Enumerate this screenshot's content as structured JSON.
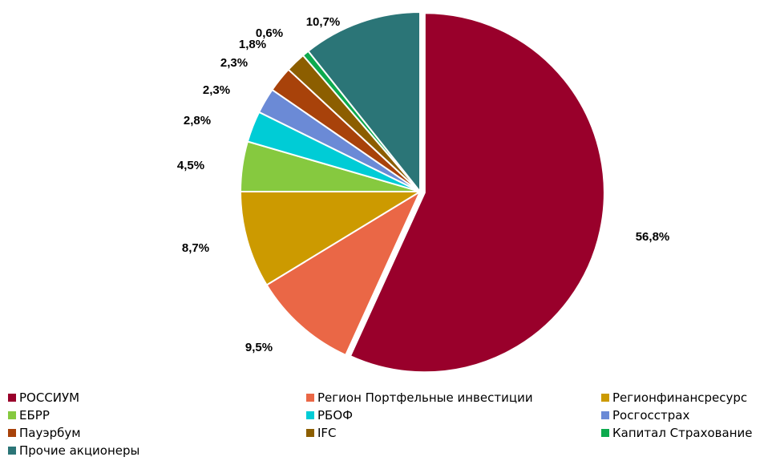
{
  "chart_data": {
    "type": "pie",
    "title": "",
    "legend_position": "bottom",
    "series": [
      {
        "name": "РОССИУМ",
        "value": 56.8,
        "label": "56,8%",
        "color": "#99002B"
      },
      {
        "name": "Регион Портфельные инвестиции",
        "value": 9.5,
        "label": "9,5%",
        "color": "#EA6746"
      },
      {
        "name": "Регионфинансресурс",
        "value": 8.7,
        "label": "8,7%",
        "color": "#CC9A00"
      },
      {
        "name": "ЕБРР",
        "value": 4.5,
        "label": "4,5%",
        "color": "#86C93F"
      },
      {
        "name": "РБОФ",
        "value": 2.8,
        "label": "2,8%",
        "color": "#00CCD6"
      },
      {
        "name": "Росгосстрах",
        "value": 2.3,
        "label": "2,3%",
        "color": "#6B8AD6"
      },
      {
        "name": "Пауэрбум",
        "value": 2.3,
        "label": "2,3%",
        "color": "#A8420A"
      },
      {
        "name": "IFC",
        "value": 1.8,
        "label": "1,8%",
        "color": "#8C5E00"
      },
      {
        "name": "Капитал Страхование",
        "value": 0.6,
        "label": "0,6%",
        "color": "#0DAA4E"
      },
      {
        "name": "Прочие акционеры",
        "value": 10.7,
        "label": "10,7%",
        "color": "#2B7577"
      }
    ],
    "exploded_slice": "РОССИУМ"
  }
}
